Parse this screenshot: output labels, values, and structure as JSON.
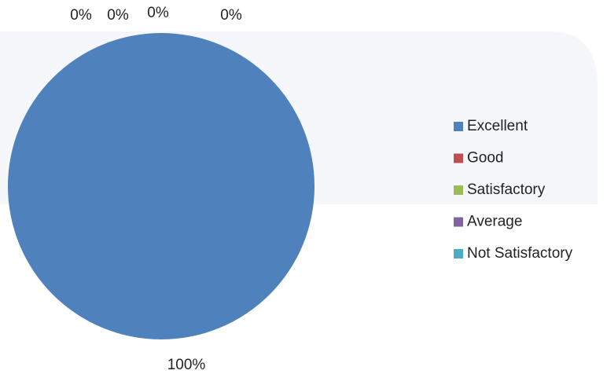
{
  "chart_data": {
    "type": "pie",
    "categories": [
      "Excellent",
      "Good",
      "Satisfactory",
      "Average",
      "Not Satisfactory"
    ],
    "values": [
      100,
      0,
      0,
      0,
      0
    ],
    "value_labels": [
      "100%",
      "0%",
      "0%",
      "0%",
      "0%"
    ],
    "colors": [
      "#4f81bd",
      "#c0504d",
      "#9bbb59",
      "#8064a2",
      "#4bacc6"
    ],
    "legend": "right"
  }
}
